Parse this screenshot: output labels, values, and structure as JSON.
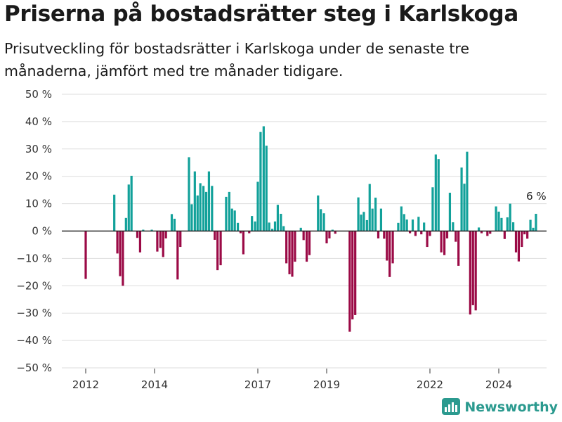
{
  "header": {
    "title": "Priserna på bostadsrätter steg i Karlskoga",
    "subtitle": "Prisutveckling för bostadsrätter i Karlskoga under de senaste tre månaderna, jämfört med tre månader tidigare."
  },
  "brand": {
    "name": "Newsworthy",
    "icon": "newsworthy-logo-icon"
  },
  "colors": {
    "positive": "#12a19a",
    "negative": "#9b0a46",
    "grid": "#dddddd",
    "zero_line": "#222222"
  },
  "chart_data": {
    "type": "bar",
    "title": "Priserna på bostadsrätter steg i Karlskoga",
    "subtitle": "Prisutveckling för bostadsrätter i Karlskoga under de senaste tre månaderna, jämfört med tre månader tidigare.",
    "xlabel": "",
    "ylabel": "",
    "ylim": [
      -50,
      50
    ],
    "y_ticks": [
      50,
      40,
      30,
      20,
      10,
      0,
      -10,
      -20,
      -30,
      -40,
      -50
    ],
    "y_tick_labels": [
      "50 %",
      "40 %",
      "30 %",
      "20 %",
      "10 %",
      "0 %",
      "−10 %",
      "−20 %",
      "−30 %",
      "−40 %",
      "−50 %"
    ],
    "x_ticks": [
      2012,
      2014,
      2017,
      2019,
      2022,
      2024
    ],
    "x_tick_labels": [
      "2012",
      "2014",
      "2017",
      "2019",
      "2022",
      "2024"
    ],
    "grid": true,
    "x_start_year": 2012,
    "annotation": {
      "text": "6 %",
      "x": 2025.09,
      "y": 6.3
    },
    "series": [
      {
        "points": [
          [
            2012.0,
            -17.5
          ],
          [
            2012.83,
            13.3
          ],
          [
            2012.92,
            -8.2
          ],
          [
            2013.0,
            -16.5
          ],
          [
            2013.08,
            -20.0
          ],
          [
            2013.17,
            4.8
          ],
          [
            2013.25,
            17.0
          ],
          [
            2013.33,
            20.2
          ],
          [
            2013.5,
            -2.5
          ],
          [
            2013.58,
            -7.8
          ],
          [
            2013.67,
            0.5
          ],
          [
            2013.92,
            0.5
          ],
          [
            2014.08,
            -7.5
          ],
          [
            2014.17,
            -6.2
          ],
          [
            2014.25,
            -9.5
          ],
          [
            2014.33,
            -2.7
          ],
          [
            2014.5,
            6.2
          ],
          [
            2014.58,
            4.5
          ],
          [
            2014.67,
            -17.7
          ],
          [
            2014.75,
            -5.8
          ],
          [
            2015.0,
            27.0
          ],
          [
            2015.08,
            9.8
          ],
          [
            2015.17,
            21.8
          ],
          [
            2015.25,
            13.0
          ],
          [
            2015.33,
            17.5
          ],
          [
            2015.42,
            16.5
          ],
          [
            2015.5,
            14.3
          ],
          [
            2015.58,
            21.8
          ],
          [
            2015.67,
            16.5
          ],
          [
            2015.75,
            -3.2
          ],
          [
            2015.83,
            -14.3
          ],
          [
            2015.92,
            -12.5
          ],
          [
            2016.08,
            12.5
          ],
          [
            2016.17,
            14.3
          ],
          [
            2016.25,
            8.2
          ],
          [
            2016.33,
            7.5
          ],
          [
            2016.42,
            3.0
          ],
          [
            2016.5,
            -0.8
          ],
          [
            2016.58,
            -8.5
          ],
          [
            2016.75,
            -0.8
          ],
          [
            2016.83,
            5.5
          ],
          [
            2016.92,
            3.5
          ],
          [
            2017.0,
            18.0
          ],
          [
            2017.08,
            36.2
          ],
          [
            2017.17,
            38.3
          ],
          [
            2017.25,
            31.2
          ],
          [
            2017.33,
            3.1
          ],
          [
            2017.42,
            0.8
          ],
          [
            2017.5,
            3.5
          ],
          [
            2017.58,
            9.6
          ],
          [
            2017.67,
            6.3
          ],
          [
            2017.75,
            1.8
          ],
          [
            2017.83,
            -11.8
          ],
          [
            2017.92,
            -15.8
          ],
          [
            2018.0,
            -16.7
          ],
          [
            2018.08,
            -11.2
          ],
          [
            2018.25,
            1.2
          ],
          [
            2018.33,
            -3.3
          ],
          [
            2018.42,
            -11.2
          ],
          [
            2018.5,
            -8.8
          ],
          [
            2018.75,
            13.0
          ],
          [
            2018.83,
            8.0
          ],
          [
            2018.92,
            6.5
          ],
          [
            2019.0,
            -4.5
          ],
          [
            2019.08,
            -2.7
          ],
          [
            2019.17,
            0.5
          ],
          [
            2019.25,
            -1.0
          ],
          [
            2019.67,
            -36.8
          ],
          [
            2019.75,
            -32.3
          ],
          [
            2019.83,
            -30.7
          ],
          [
            2019.92,
            12.3
          ],
          [
            2020.0,
            6.0
          ],
          [
            2020.08,
            7.0
          ],
          [
            2020.17,
            4.0
          ],
          [
            2020.25,
            17.2
          ],
          [
            2020.33,
            8.2
          ],
          [
            2020.42,
            12.2
          ],
          [
            2020.5,
            -2.7
          ],
          [
            2020.58,
            8.2
          ],
          [
            2020.67,
            -2.8
          ],
          [
            2020.75,
            -10.8
          ],
          [
            2020.83,
            -16.8
          ],
          [
            2020.92,
            -11.8
          ],
          [
            2021.08,
            3.0
          ],
          [
            2021.17,
            9.0
          ],
          [
            2021.25,
            6.2
          ],
          [
            2021.33,
            4.2
          ],
          [
            2021.42,
            -0.8
          ],
          [
            2021.5,
            4.2
          ],
          [
            2021.58,
            -1.8
          ],
          [
            2021.67,
            5.2
          ],
          [
            2021.75,
            -1.2
          ],
          [
            2021.83,
            3.1
          ],
          [
            2021.92,
            -5.8
          ],
          [
            2022.0,
            -1.8
          ],
          [
            2022.08,
            16.0
          ],
          [
            2022.17,
            28.0
          ],
          [
            2022.25,
            26.3
          ],
          [
            2022.33,
            -7.8
          ],
          [
            2022.42,
            -8.8
          ],
          [
            2022.5,
            -2.7
          ],
          [
            2022.58,
            14.0
          ],
          [
            2022.67,
            3.2
          ],
          [
            2022.75,
            -3.9
          ],
          [
            2022.83,
            -12.7
          ],
          [
            2022.92,
            23.2
          ],
          [
            2023.0,
            17.3
          ],
          [
            2023.08,
            29.0
          ],
          [
            2023.17,
            -30.5
          ],
          [
            2023.25,
            -27.1
          ],
          [
            2023.33,
            -29.0
          ],
          [
            2023.42,
            1.3
          ],
          [
            2023.5,
            -0.8
          ],
          [
            2023.67,
            -1.8
          ],
          [
            2023.75,
            -1.0
          ],
          [
            2023.92,
            9.0
          ],
          [
            2024.0,
            7.1
          ],
          [
            2024.08,
            4.8
          ],
          [
            2024.17,
            -2.9
          ],
          [
            2024.25,
            5.0
          ],
          [
            2024.33,
            10.0
          ],
          [
            2024.42,
            3.2
          ],
          [
            2024.5,
            -7.8
          ],
          [
            2024.58,
            -11.1
          ],
          [
            2024.67,
            -5.8
          ],
          [
            2024.75,
            -1.2
          ],
          [
            2024.83,
            -2.8
          ],
          [
            2024.92,
            4.1
          ],
          [
            2025.0,
            1.2
          ],
          [
            2025.08,
            6.3
          ]
        ]
      }
    ]
  }
}
